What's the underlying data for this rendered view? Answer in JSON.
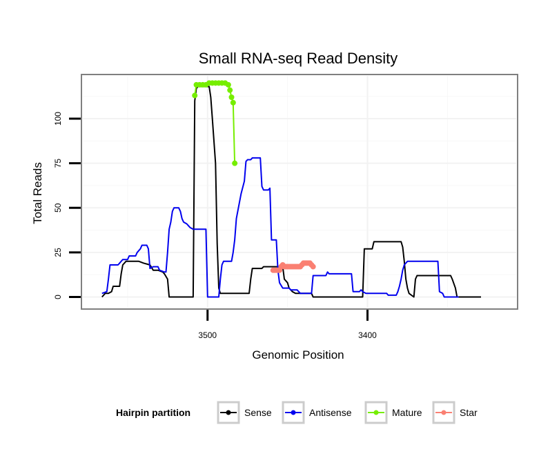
{
  "chart_data": {
    "type": "line",
    "title": "Small RNA-seq Read Density",
    "xlabel": "Genomic Position",
    "ylabel": "Total Reads",
    "x_reversed": true,
    "xlim": [
      3578,
      3307
    ],
    "ylim": [
      -6,
      124
    ],
    "x_ticks": [
      3500,
      3400
    ],
    "y_ticks": [
      0,
      25,
      50,
      75,
      100
    ],
    "grid": true,
    "legend": {
      "title": "Hairpin partition",
      "position": "bottom",
      "entries": [
        "Sense",
        "Antisense",
        "Mature",
        "Star"
      ]
    },
    "series": [
      {
        "name": "Sense",
        "color": "#000000",
        "markers": false,
        "points": [
          [
            3566,
            0
          ],
          [
            3564,
            2
          ],
          [
            3562,
            2
          ],
          [
            3560,
            3
          ],
          [
            3559,
            6
          ],
          [
            3555,
            6
          ],
          [
            3554,
            13
          ],
          [
            3553,
            18
          ],
          [
            3551,
            20
          ],
          [
            3543,
            20
          ],
          [
            3540,
            19
          ],
          [
            3536,
            18
          ],
          [
            3534,
            15
          ],
          [
            3531,
            15
          ],
          [
            3528,
            14
          ],
          [
            3527,
            13
          ],
          [
            3525,
            10
          ],
          [
            3524,
            0
          ],
          [
            3509,
            0
          ],
          [
            3508,
            110
          ],
          [
            3507,
            117
          ],
          [
            3506,
            118
          ],
          [
            3499,
            118
          ],
          [
            3498,
            112
          ],
          [
            3497,
            100
          ],
          [
            3495,
            75
          ],
          [
            3494,
            30
          ],
          [
            3493,
            5
          ],
          [
            3492,
            2
          ],
          [
            3474,
            2
          ],
          [
            3473,
            10
          ],
          [
            3472,
            16
          ],
          [
            3466,
            16
          ],
          [
            3465,
            17
          ],
          [
            3453,
            17
          ],
          [
            3452,
            10
          ],
          [
            3450,
            8
          ],
          [
            3449,
            5
          ],
          [
            3447,
            3
          ],
          [
            3445,
            2
          ],
          [
            3435,
            2
          ],
          [
            3434,
            0
          ],
          [
            3403,
            0
          ],
          [
            3402,
            27
          ],
          [
            3397,
            27
          ],
          [
            3396,
            31
          ],
          [
            3379,
            31
          ],
          [
            3378,
            28
          ],
          [
            3377,
            20
          ],
          [
            3376,
            10
          ],
          [
            3375,
            5
          ],
          [
            3374,
            2
          ],
          [
            3371,
            0
          ],
          [
            3370,
            10
          ],
          [
            3369,
            12
          ],
          [
            3348,
            12
          ],
          [
            3347,
            10
          ],
          [
            3345,
            5
          ],
          [
            3344,
            0
          ],
          [
            3329,
            0
          ]
        ]
      },
      {
        "name": "Antisense",
        "color": "#0000ee",
        "markers": false,
        "points": [
          [
            3566,
            2
          ],
          [
            3563,
            3
          ],
          [
            3562,
            10
          ],
          [
            3561,
            18
          ],
          [
            3556,
            18
          ],
          [
            3555,
            19
          ],
          [
            3553,
            21
          ],
          [
            3550,
            21
          ],
          [
            3549,
            23
          ],
          [
            3545,
            23
          ],
          [
            3544,
            25
          ],
          [
            3542,
            27
          ],
          [
            3541,
            29
          ],
          [
            3538,
            29
          ],
          [
            3537,
            27
          ],
          [
            3536,
            16
          ],
          [
            3534,
            17
          ],
          [
            3531,
            17
          ],
          [
            3530,
            15
          ],
          [
            3527,
            14
          ],
          [
            3526,
            14
          ],
          [
            3525,
            25
          ],
          [
            3524,
            38
          ],
          [
            3523,
            42
          ],
          [
            3522,
            48
          ],
          [
            3521,
            50
          ],
          [
            3518,
            50
          ],
          [
            3517,
            48
          ],
          [
            3516,
            44
          ],
          [
            3515,
            42
          ],
          [
            3513,
            41
          ],
          [
            3512,
            40
          ],
          [
            3511,
            39
          ],
          [
            3509,
            38
          ],
          [
            3501,
            38
          ],
          [
            3500,
            0
          ],
          [
            3493,
            0
          ],
          [
            3492,
            10
          ],
          [
            3491,
            18
          ],
          [
            3490,
            20
          ],
          [
            3485,
            20
          ],
          [
            3484,
            25
          ],
          [
            3483,
            32
          ],
          [
            3482,
            44
          ],
          [
            3479,
            58
          ],
          [
            3477,
            65
          ],
          [
            3476,
            76
          ],
          [
            3475,
            77
          ],
          [
            3473,
            77
          ],
          [
            3472,
            78
          ],
          [
            3467,
            78
          ],
          [
            3466,
            62
          ],
          [
            3465,
            60
          ],
          [
            3462,
            60
          ],
          [
            3461,
            61
          ],
          [
            3460,
            32
          ],
          [
            3457,
            32
          ],
          [
            3456,
            15
          ],
          [
            3455,
            8
          ],
          [
            3453,
            5
          ],
          [
            3449,
            5
          ],
          [
            3448,
            4
          ],
          [
            3444,
            4
          ],
          [
            3442,
            2
          ],
          [
            3435,
            2
          ],
          [
            3434,
            12
          ],
          [
            3426,
            12
          ],
          [
            3425,
            14
          ],
          [
            3424,
            13
          ],
          [
            3410,
            13
          ],
          [
            3409,
            3
          ],
          [
            3405,
            3
          ],
          [
            3404,
            4
          ],
          [
            3403,
            3
          ],
          [
            3401,
            2
          ],
          [
            3388,
            2
          ],
          [
            3387,
            1
          ],
          [
            3382,
            1
          ],
          [
            3381,
            3
          ],
          [
            3380,
            6
          ],
          [
            3379,
            10
          ],
          [
            3378,
            15
          ],
          [
            3377,
            18
          ],
          [
            3375,
            20
          ],
          [
            3374,
            20
          ],
          [
            3356,
            20
          ],
          [
            3355,
            3
          ],
          [
            3353,
            2
          ],
          [
            3352,
            0
          ],
          [
            3343,
            0
          ]
        ]
      },
      {
        "name": "Mature",
        "color": "#76ee00",
        "markers": true,
        "points": [
          [
            3508,
            113
          ],
          [
            3507,
            119
          ],
          [
            3505,
            119
          ],
          [
            3503,
            119
          ],
          [
            3501,
            119
          ],
          [
            3499,
            120
          ],
          [
            3497,
            120
          ],
          [
            3495,
            120
          ],
          [
            3493,
            120
          ],
          [
            3491,
            120
          ],
          [
            3489,
            120
          ],
          [
            3487,
            119
          ],
          [
            3486,
            116
          ],
          [
            3485,
            112
          ],
          [
            3484,
            109
          ],
          [
            3483,
            75
          ]
        ]
      },
      {
        "name": "Star",
        "color": "#fa8072",
        "markers": true,
        "points": [
          [
            3459,
            15
          ],
          [
            3458,
            15
          ],
          [
            3457,
            15
          ],
          [
            3456,
            15
          ],
          [
            3455,
            15
          ],
          [
            3454,
            17
          ],
          [
            3453,
            18
          ],
          [
            3452,
            17
          ],
          [
            3451,
            17
          ],
          [
            3450,
            17
          ],
          [
            3449,
            17
          ],
          [
            3448,
            17
          ],
          [
            3447,
            17
          ],
          [
            3446,
            17
          ],
          [
            3445,
            17
          ],
          [
            3444,
            17
          ],
          [
            3443,
            17
          ],
          [
            3442,
            17
          ],
          [
            3441,
            18
          ],
          [
            3440,
            19
          ],
          [
            3439,
            19
          ],
          [
            3438,
            19
          ],
          [
            3437,
            19
          ],
          [
            3436,
            19
          ],
          [
            3435,
            18
          ],
          [
            3434,
            17
          ]
        ]
      }
    ]
  }
}
